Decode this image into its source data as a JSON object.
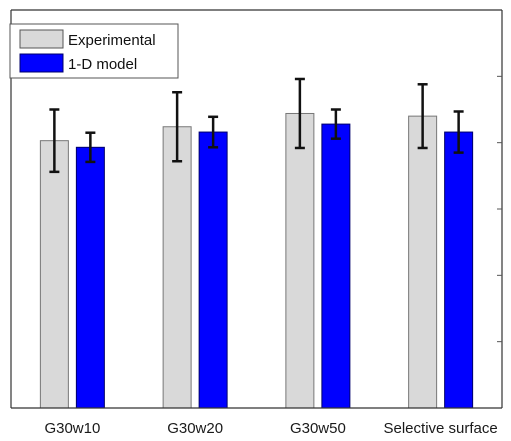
{
  "chart_data": {
    "type": "bar",
    "title": "",
    "xlabel": "",
    "ylabel": "",
    "categories": [
      "G30w10",
      "G30w20",
      "G30w50",
      "Selective surface"
    ],
    "ylim": [
      0,
      6
    ],
    "grid": false,
    "legend_position": "top-left",
    "series": [
      {
        "name": "Experimental",
        "color": "#d9d9d9",
        "edge_color": "#777777",
        "values": [
          4.03,
          4.24,
          4.44,
          4.4
        ],
        "error": [
          0.47,
          0.52,
          0.52,
          0.48
        ]
      },
      {
        "name": "1-D model",
        "color": "#0000ff",
        "edge_color": "#00006b",
        "values": [
          3.93,
          4.16,
          4.28,
          4.16
        ],
        "error": [
          0.22,
          0.23,
          0.22,
          0.31
        ]
      }
    ]
  }
}
